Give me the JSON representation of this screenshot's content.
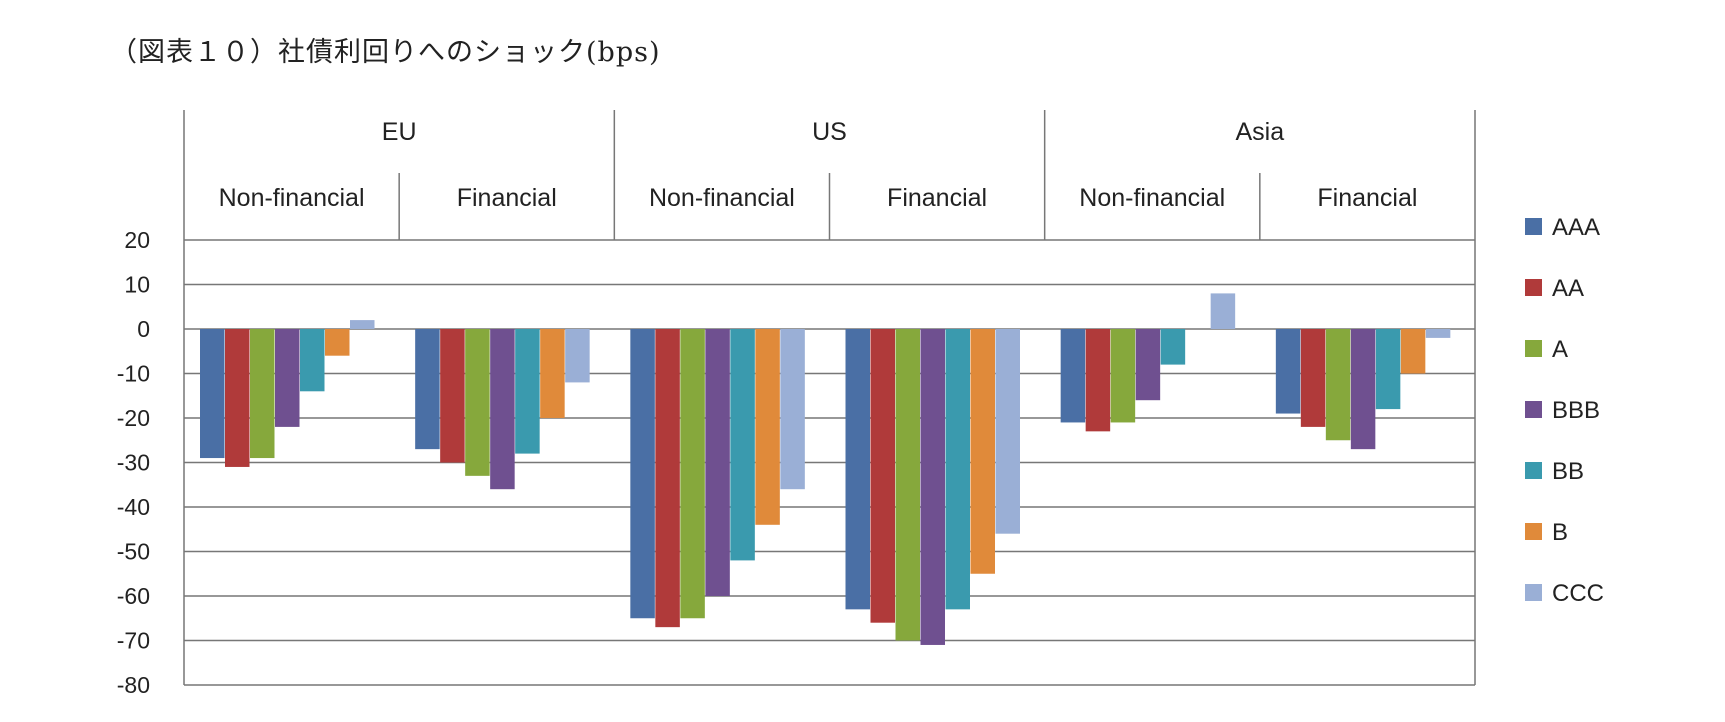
{
  "title": "（図表１０）社債利回りへのショック(bps)",
  "colors": {
    "AAA": "#4a6fa5",
    "AA": "#b03a3a",
    "A": "#86a83c",
    "BBB": "#6f5090",
    "BB": "#3a9aae",
    "B": "#e08a3a",
    "CCC": "#9aafd6",
    "grid": "#777777"
  },
  "chart_data": {
    "type": "bar",
    "title": "（図表１０）社債利回りへのショック(bps)",
    "xlabel": "",
    "ylabel": "",
    "ylim": [
      -80,
      20
    ],
    "yticks": [
      "20",
      "10",
      "0",
      "-10",
      "-20",
      "-30",
      "-40",
      "-50",
      "-60",
      "-70",
      "-80"
    ],
    "grid": true,
    "legend_position": "right",
    "regions": [
      "EU",
      "US",
      "Asia"
    ],
    "categories": [
      "Non-financial",
      "Financial",
      "Non-financial",
      "Financial",
      "Non-financial",
      "Financial"
    ],
    "series": [
      {
        "name": "AAA",
        "values": [
          -29,
          -27,
          -65,
          -63,
          -21,
          -19
        ]
      },
      {
        "name": "AA",
        "values": [
          -31,
          -30,
          -67,
          -66,
          -23,
          -22
        ]
      },
      {
        "name": "A",
        "values": [
          -29,
          -33,
          -65,
          -70,
          -21,
          -25
        ]
      },
      {
        "name": "BBB",
        "values": [
          -22,
          -36,
          -60,
          -71,
          -16,
          -27
        ]
      },
      {
        "name": "BB",
        "values": [
          -14,
          -28,
          -52,
          -63,
          -8,
          -18
        ]
      },
      {
        "name": "B",
        "values": [
          -6,
          -20,
          -44,
          -55,
          0,
          -10
        ]
      },
      {
        "name": "CCC",
        "values": [
          2,
          -12,
          -36,
          -46,
          8,
          -2
        ]
      }
    ]
  }
}
